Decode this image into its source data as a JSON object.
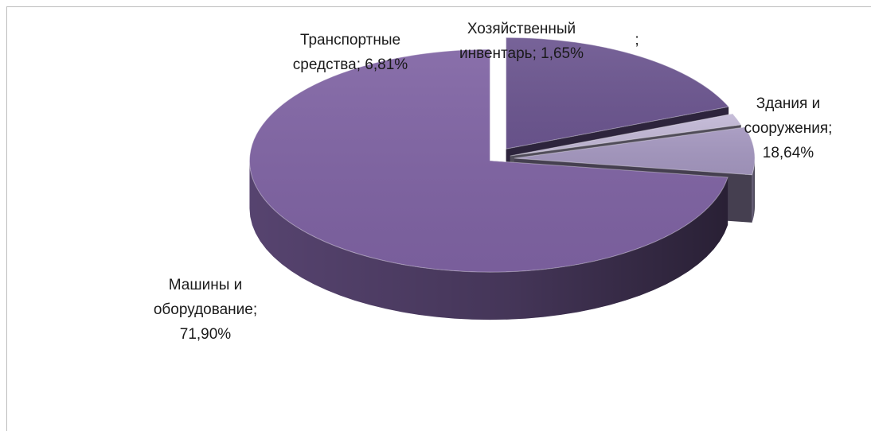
{
  "chart_data": {
    "type": "pie",
    "style": "3d-exploded",
    "slices": [
      {
        "name": "Здания и сооружения",
        "value": 18.64,
        "label_lines": [
          "Здания и",
          "сооружения;",
          "18,64%"
        ],
        "color": "#6c5690"
      },
      {
        "name": "",
        "value": 0,
        "label_lines": [
          ";"
        ],
        "color": "#d3cbe2"
      },
      {
        "name": "Хозяйственный инвентарь",
        "value": 1.65,
        "label_lines": [
          "Хозяйственный",
          "инвентарь; 1,65%"
        ],
        "color": "#c2b8d6"
      },
      {
        "name": "Транспортные средства",
        "value": 6.81,
        "label_lines": [
          "Транспортные",
          "средства; 6,81%"
        ],
        "color": "#a497bf"
      },
      {
        "name": "Машины и оборудование",
        "value": 71.9,
        "label_lines": [
          "Машины и",
          "оборудование;",
          "71,90%"
        ],
        "color": "#7f63a3"
      }
    ],
    "legend": "none"
  }
}
